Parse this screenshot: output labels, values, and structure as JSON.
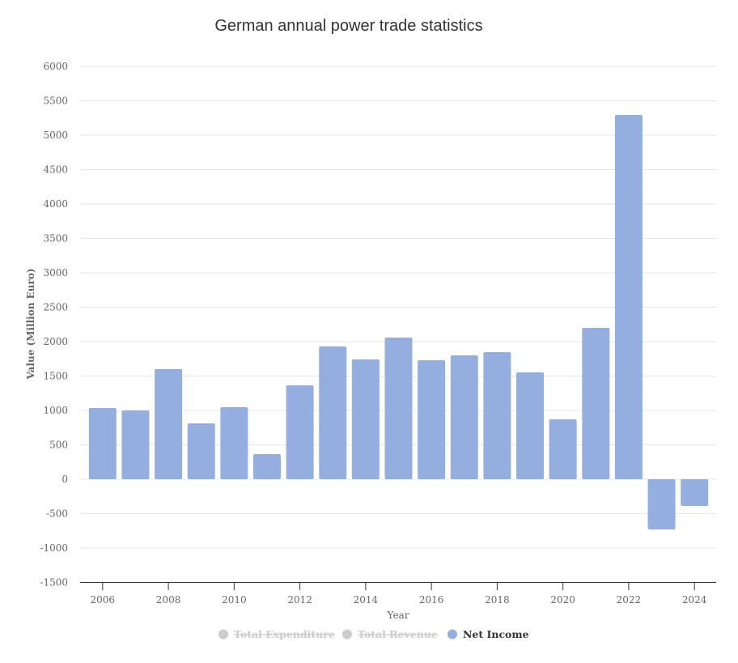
{
  "chart_data": {
    "type": "bar",
    "title": "German annual power trade statistics",
    "xlabel": "Year",
    "ylabel": "Value (Million Euro)",
    "ylim": [
      -1500,
      6000
    ],
    "yticks": [
      -1500,
      -1000,
      -500,
      0,
      500,
      1000,
      1500,
      2000,
      2500,
      3000,
      3500,
      4000,
      4500,
      5000,
      5500,
      6000
    ],
    "categories": [
      "2006",
      "2007",
      "2008",
      "2009",
      "2010",
      "2011",
      "2012",
      "2013",
      "2014",
      "2015",
      "2016",
      "2017",
      "2018",
      "2019",
      "2020",
      "2021",
      "2022",
      "2023",
      "2024"
    ],
    "xtick_labels": [
      "2006",
      "2008",
      "2010",
      "2012",
      "2014",
      "2016",
      "2018",
      "2020",
      "2022",
      "2024"
    ],
    "grid": true,
    "legend_position": "bottom",
    "series": [
      {
        "name": "Total Expenditure",
        "visible": false,
        "color": "#cccccc"
      },
      {
        "name": "Total Revenue",
        "visible": false,
        "color": "#cccccc"
      },
      {
        "name": "Net Income",
        "visible": true,
        "color": "#95aee0",
        "values": [
          1035,
          1000,
          1600,
          812,
          1047,
          365,
          1365,
          1929,
          1741,
          2059,
          1729,
          1800,
          1847,
          1553,
          871,
          2200,
          5294,
          -729,
          -388
        ]
      }
    ]
  }
}
